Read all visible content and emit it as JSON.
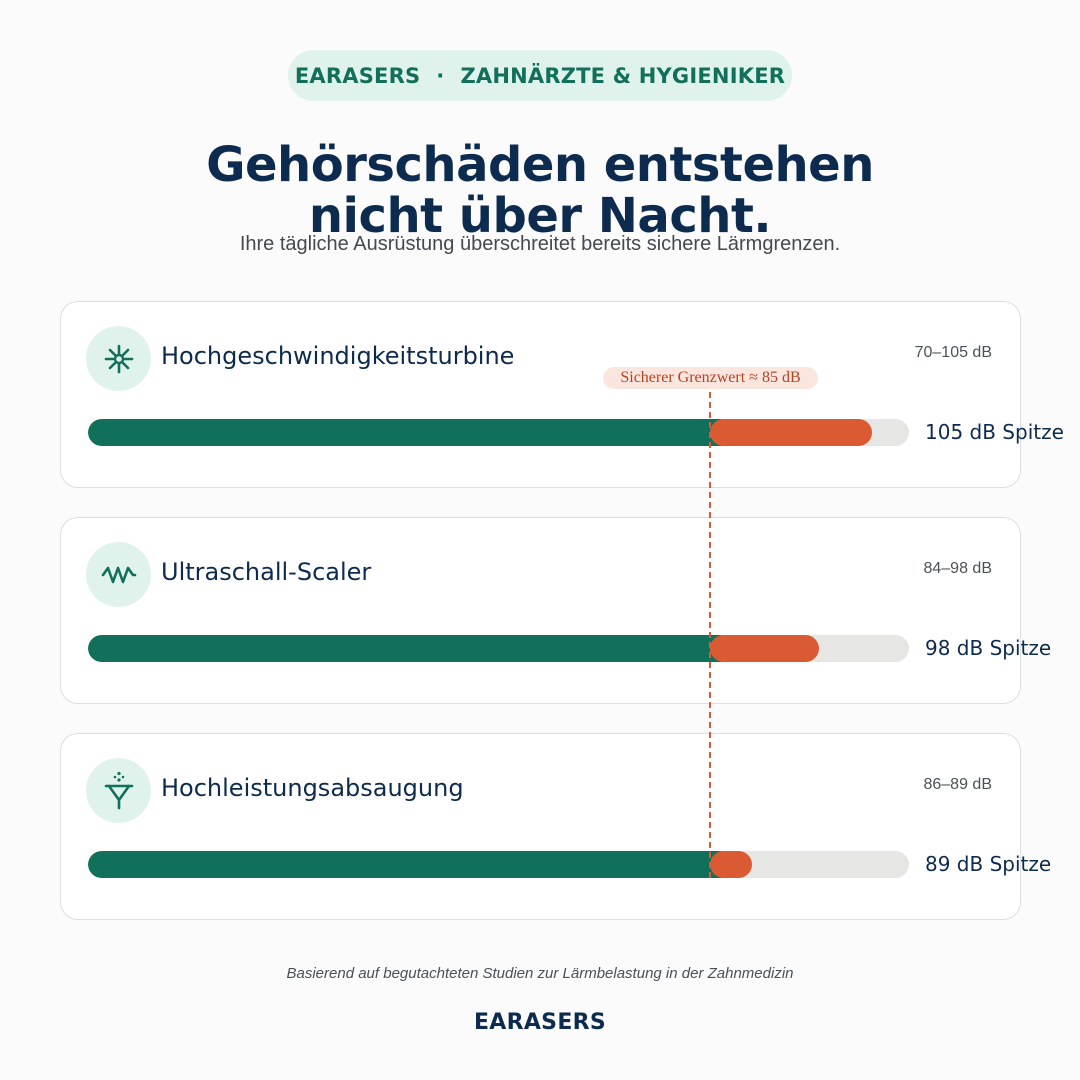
{
  "header": {
    "brand": "EARASERS",
    "separator": "·",
    "audience": "ZAHNÄRZTE & HYGIENIKER",
    "headline_line1": "Gehörschäden entstehen",
    "headline_line2": "nicht über Nacht.",
    "subline": "Ihre tägliche Ausrüstung überschreitet bereits sichere Lärmgrenzen."
  },
  "colors": {
    "safe": "#11705a",
    "over_limit": "#d95a33",
    "track": "#e6e6e4",
    "text_dark": "#0d2b4e",
    "accent_bg": "#e0f2ec"
  },
  "chart_data": {
    "type": "bar",
    "orientation": "horizontal",
    "unit": "dB",
    "scale_min_db": 0,
    "scale_max_db": 110,
    "threshold": {
      "value": 85,
      "label": "Sicherer Grenzwert ≈ 85 dB"
    },
    "items": [
      {
        "name": "Hochgeschwindigkeitsturbine",
        "icon": "turbine-icon",
        "range": "70–105 dB",
        "peak": 105,
        "peak_label": "105 dB Spitze"
      },
      {
        "name": "Ultraschall-Scaler",
        "icon": "wave-icon",
        "range": "84–98 dB",
        "peak": 98,
        "peak_label": "98 dB Spitze"
      },
      {
        "name": "Hochleistungsabsaugung",
        "icon": "suction-icon",
        "range": "86–89 dB",
        "peak": 89,
        "peak_label": "89 dB Spitze"
      }
    ]
  },
  "footer": {
    "note": "Basierend auf begutachteten Studien zur Lärmbelastung in der Zahnmedizin",
    "brand": "EARASERS"
  }
}
